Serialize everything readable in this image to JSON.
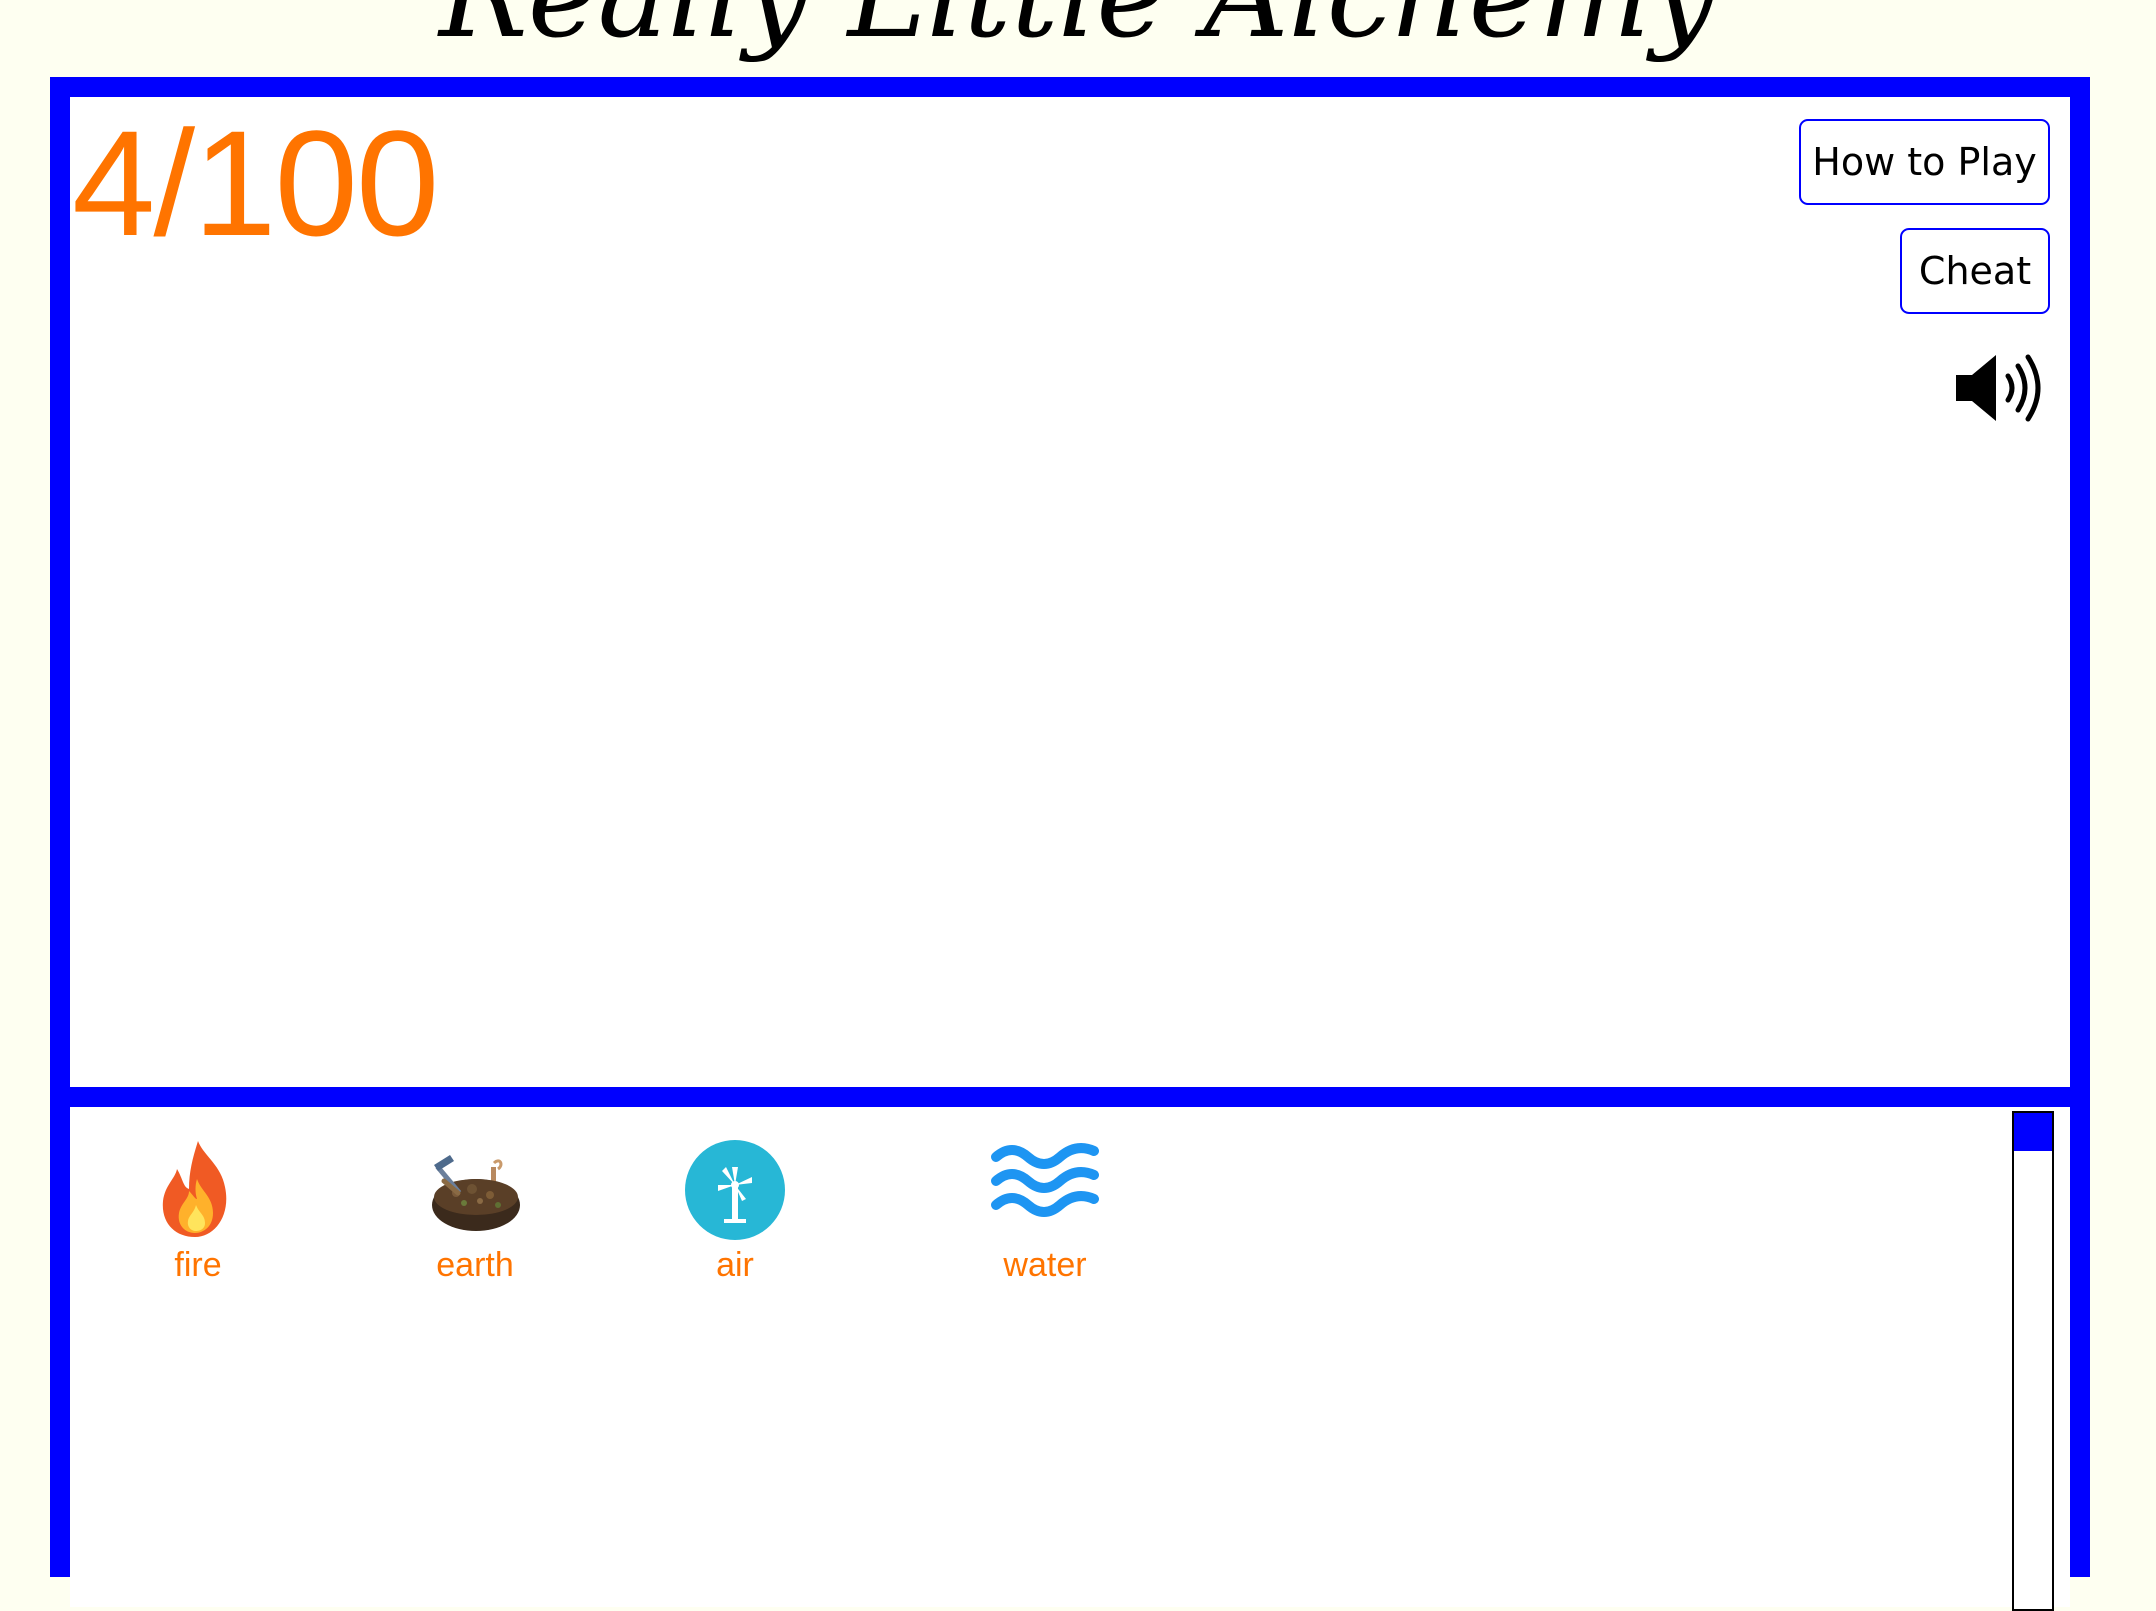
{
  "title": "Really Little Alchemy",
  "counter": {
    "found": 4,
    "total": 100,
    "text": "4/100"
  },
  "buttons": {
    "how_to_play": "How to Play",
    "cheat": "Cheat"
  },
  "sound": {
    "icon": "speaker-on-icon",
    "enabled": true
  },
  "inventory": {
    "elements": [
      {
        "name": "fire",
        "icon": "fire-icon"
      },
      {
        "name": "earth",
        "icon": "earth-icon"
      },
      {
        "name": "air",
        "icon": "air-icon"
      },
      {
        "name": "water",
        "icon": "water-icon"
      }
    ]
  },
  "colors": {
    "background": "#fefff1",
    "frame": "#0000ff",
    "accent": "#ff7400",
    "air_circle": "#27b7d6",
    "water": "#1e95f2"
  }
}
